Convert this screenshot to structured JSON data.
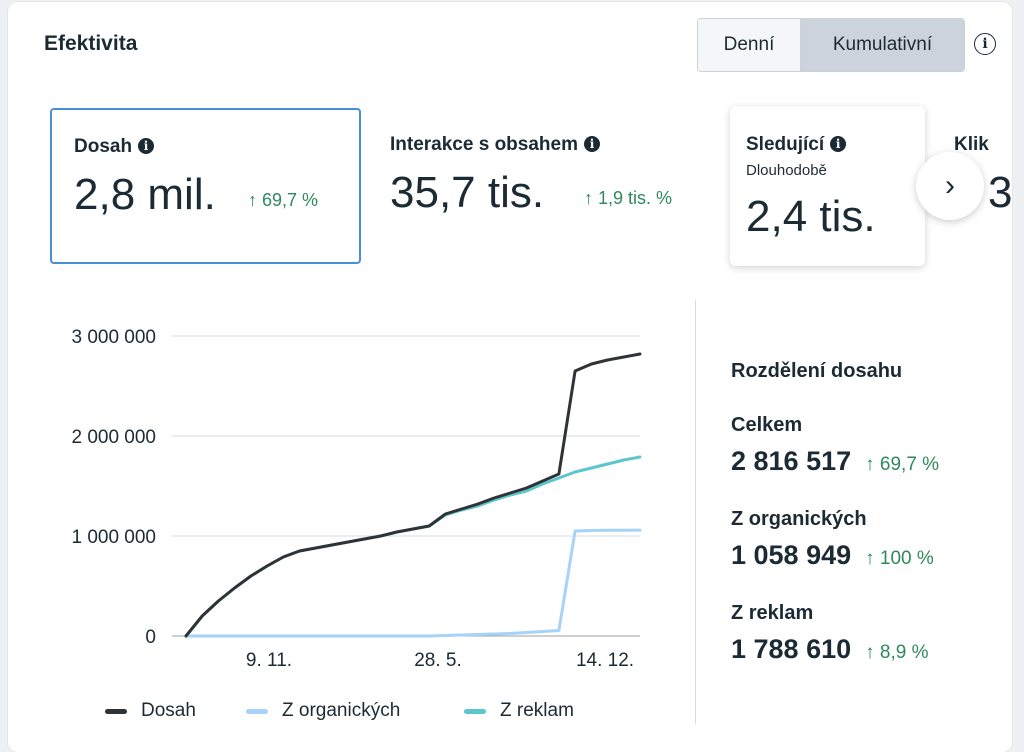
{
  "header": {
    "title": "Efektivita",
    "segments": [
      "Denní",
      "Kumulativní"
    ],
    "info_icon": "info-icon"
  },
  "metrics": [
    {
      "label": "Dosah",
      "value": "2,8 mil.",
      "delta": "↑ 69,7 %"
    },
    {
      "label": "Interakce s obsahem",
      "value": "35,7 tis.",
      "delta": "↑ 1,9 tis. %"
    },
    {
      "label": "Sledující",
      "sublabel": "Dlouhodobě",
      "value": "2,4 tis."
    },
    {
      "label": "Klik",
      "value": "3"
    }
  ],
  "next_icon": "chevron-right-icon",
  "chart_data": {
    "type": "line",
    "x_ticks": [
      "9. 11.",
      "28. 5.",
      "14. 12."
    ],
    "y_ticks": [
      "3 000 000",
      "2 000 000",
      "1 000 000",
      "0"
    ],
    "ylim": [
      0,
      3000000
    ],
    "grid": true,
    "legend_placement": "bottom",
    "series": [
      {
        "name": "Dosah",
        "color": "#303336",
        "values": [
          0,
          200000,
          350000,
          480000,
          600000,
          700000,
          790000,
          850000,
          880000,
          910000,
          940000,
          970000,
          1000000,
          1040000,
          1070000,
          1100000,
          1220000,
          1270000,
          1320000,
          1380000,
          1430000,
          1480000,
          1550000,
          1620000,
          2650000,
          2720000,
          2760000,
          2790000,
          2820000
        ]
      },
      {
        "name": "Z organických",
        "color": "#a6d3f7",
        "values": [
          0,
          0,
          0,
          0,
          0,
          0,
          0,
          0,
          0,
          0,
          0,
          0,
          0,
          0,
          0,
          0,
          5000,
          10000,
          15000,
          20000,
          25000,
          35000,
          45000,
          55000,
          1050000,
          1055000,
          1057000,
          1058000,
          1059000
        ]
      },
      {
        "name": "Z reklam",
        "color": "#5cc6cc",
        "values": [
          0,
          200000,
          350000,
          480000,
          600000,
          700000,
          790000,
          850000,
          880000,
          910000,
          940000,
          970000,
          1000000,
          1040000,
          1070000,
          1100000,
          1210000,
          1260000,
          1300000,
          1360000,
          1410000,
          1450000,
          1520000,
          1580000,
          1640000,
          1680000,
          1720000,
          1760000,
          1790000
        ]
      }
    ]
  },
  "breakdown": {
    "title": "Rozdělení dosahu",
    "rows": [
      {
        "label": "Celkem",
        "value": "2 816 517",
        "delta": "↑ 69,7 %"
      },
      {
        "label": "Z organických",
        "value": "1 058 949",
        "delta": "↑ 100 %"
      },
      {
        "label": "Z reklam",
        "value": "1 788 610",
        "delta": "↑ 8,9 %"
      }
    ]
  }
}
